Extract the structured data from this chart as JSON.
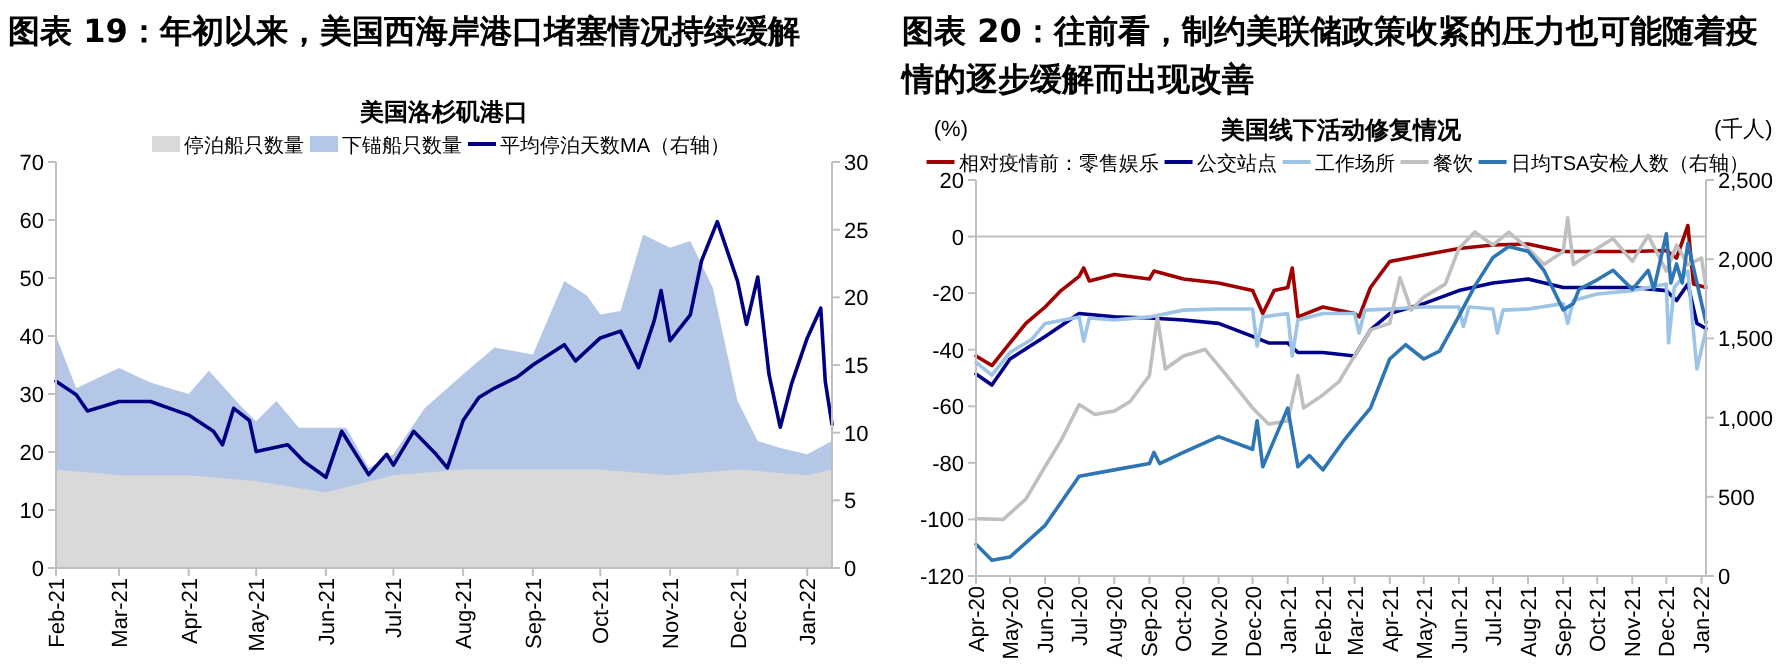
{
  "chart_data": [
    {
      "type": "area",
      "title": "图表 19：年初以来，美国西海岸港口堵塞情况持续缓解",
      "subtitle": "美国洛杉矶港口",
      "legend": "top",
      "grid": false,
      "xlim": [
        "2021-02-01",
        "2022-01-12"
      ],
      "xticks": [
        {
          "value": "2021-02-01",
          "label": "Feb-21"
        },
        {
          "value": "2021-03-01",
          "label": "Mar-21"
        },
        {
          "value": "2021-04-01",
          "label": "Apr-21"
        },
        {
          "value": "2021-05-01",
          "label": "May-21"
        },
        {
          "value": "2021-06-01",
          "label": "Jun-21"
        },
        {
          "value": "2021-07-01",
          "label": "Jul-21"
        },
        {
          "value": "2021-08-01",
          "label": "Aug-21"
        },
        {
          "value": "2021-09-01",
          "label": "Sep-21"
        },
        {
          "value": "2021-10-01",
          "label": "Oct-21"
        },
        {
          "value": "2021-11-01",
          "label": "Nov-21"
        },
        {
          "value": "2021-12-01",
          "label": "Dec-21"
        },
        {
          "value": "2022-01-01",
          "label": "Jan-22"
        }
      ],
      "ylim": [
        0,
        70
      ],
      "yticks": [
        0,
        10,
        20,
        30,
        40,
        50,
        60,
        70
      ],
      "y2lim": [
        0,
        30
      ],
      "y2ticks": [
        0,
        5,
        10,
        15,
        20,
        25,
        30
      ],
      "series": [
        {
          "name": "停泊船只数量",
          "color": "#d9d9d9",
          "x": [
            "2021-02-01",
            "2021-03-01",
            "2021-04-01",
            "2021-05-01",
            "2021-06-01",
            "2021-07-01",
            "2021-08-01",
            "2021-09-01",
            "2021-10-01",
            "2021-11-01",
            "2021-12-01",
            "2022-01-01",
            "2022-01-12"
          ],
          "values": [
            17,
            16,
            16,
            15,
            13,
            16,
            17,
            17,
            17,
            16,
            17,
            16,
            17
          ]
        },
        {
          "name": "下锚船只数量",
          "color": "#b4c7e7",
          "x": [
            "2021-02-01",
            "2021-02-10",
            "2021-03-01",
            "2021-03-15",
            "2021-04-01",
            "2021-04-10",
            "2021-04-25",
            "2021-05-01",
            "2021-05-10",
            "2021-05-20",
            "2021-06-10",
            "2021-06-20",
            "2021-07-01",
            "2021-07-15",
            "2021-08-01",
            "2021-08-15",
            "2021-09-01",
            "2021-09-15",
            "2021-09-25",
            "2021-10-01",
            "2021-10-10",
            "2021-10-20",
            "2021-11-01",
            "2021-11-10",
            "2021-11-20",
            "2021-12-01",
            "2021-12-10",
            "2021-12-20",
            "2022-01-01",
            "2022-01-12"
          ],
          "values": [
            40,
            31,
            34.5,
            32,
            30,
            34,
            27.6,
            25.3,
            28.8,
            24.2,
            24.2,
            17.3,
            19.6,
            27.6,
            33.4,
            38,
            36.8,
            49.5,
            47,
            43.7,
            44.3,
            57.5,
            55.2,
            56.4,
            48.3,
            28.8,
            21.9,
            20.7,
            19.6,
            21.9
          ]
        },
        {
          "name": "平均停泊天数MA（右轴）",
          "type": "line",
          "axis": "y2",
          "color": "#000080",
          "x": [
            "2021-02-01",
            "2021-02-10",
            "2021-02-15",
            "2021-03-01",
            "2021-03-15",
            "2021-04-01",
            "2021-04-12",
            "2021-04-16",
            "2021-04-21",
            "2021-04-28",
            "2021-05-01",
            "2021-05-15",
            "2021-05-22",
            "2021-06-01",
            "2021-06-08",
            "2021-06-20",
            "2021-06-28",
            "2021-07-01",
            "2021-07-10",
            "2021-07-20",
            "2021-07-25",
            "2021-08-01",
            "2021-08-08",
            "2021-08-15",
            "2021-08-25",
            "2021-09-01",
            "2021-09-15",
            "2021-09-20",
            "2021-10-01",
            "2021-10-10",
            "2021-10-18",
            "2021-10-25",
            "2021-10-28",
            "2021-11-01",
            "2021-11-10",
            "2021-11-15",
            "2021-11-22",
            "2021-12-01",
            "2021-12-05",
            "2021-12-10",
            "2021-12-15",
            "2021-12-20",
            "2021-12-25",
            "2022-01-01",
            "2022-01-07",
            "2022-01-09",
            "2022-01-12"
          ],
          "values": [
            13.8,
            12.8,
            11.6,
            12.3,
            12.3,
            11.3,
            10.1,
            9.1,
            11.8,
            10.9,
            8.6,
            9.1,
            7.9,
            6.7,
            10.1,
            6.9,
            8.4,
            7.6,
            10.1,
            8.4,
            7.4,
            10.9,
            12.6,
            13.3,
            14.1,
            15,
            16.5,
            15.3,
            17,
            17.5,
            14.8,
            18.3,
            20.5,
            16.8,
            18.7,
            22.7,
            25.6,
            21.2,
            18,
            21.5,
            14.3,
            10.4,
            13.6,
            17,
            19.2,
            13.8,
            10.6
          ]
        }
      ]
    },
    {
      "type": "line",
      "title": "图表 20：往前看，制约美联储政策收紧的压力也可能随着疫情的逐步缓解而出现改善",
      "subtitle": "美国线下活动修复情况",
      "ylabel": "(%)",
      "y2label": "(千人)",
      "legend": "top",
      "grid": false,
      "xlim": [
        "2020-04-01",
        "2022-01-05"
      ],
      "xticks": [
        {
          "value": "2020-04-01",
          "label": "Apr-20"
        },
        {
          "value": "2020-05-01",
          "label": "May-20"
        },
        {
          "value": "2020-06-01",
          "label": "Jun-20"
        },
        {
          "value": "2020-07-01",
          "label": "Jul-20"
        },
        {
          "value": "2020-08-01",
          "label": "Aug-20"
        },
        {
          "value": "2020-09-01",
          "label": "Sep-20"
        },
        {
          "value": "2020-10-01",
          "label": "Oct-20"
        },
        {
          "value": "2020-11-01",
          "label": "Nov-20"
        },
        {
          "value": "2020-12-01",
          "label": "Dec-20"
        },
        {
          "value": "2021-01-01",
          "label": "Jan-21"
        },
        {
          "value": "2021-02-01",
          "label": "Feb-21"
        },
        {
          "value": "2021-03-01",
          "label": "Mar-21"
        },
        {
          "value": "2021-04-01",
          "label": "Apr-21"
        },
        {
          "value": "2021-05-01",
          "label": "May-21"
        },
        {
          "value": "2021-06-01",
          "label": "Jun-21"
        },
        {
          "value": "2021-07-01",
          "label": "Jul-21"
        },
        {
          "value": "2021-08-01",
          "label": "Aug-21"
        },
        {
          "value": "2021-09-01",
          "label": "Sep-21"
        },
        {
          "value": "2021-10-01",
          "label": "Oct-21"
        },
        {
          "value": "2021-11-01",
          "label": "Nov-21"
        },
        {
          "value": "2021-12-01",
          "label": "Dec-21"
        },
        {
          "value": "2022-01-01",
          "label": "Jan-22"
        }
      ],
      "ylim": [
        -120,
        20
      ],
      "yticks": [
        -120,
        -100,
        -80,
        -60,
        -40,
        -20,
        0,
        20
      ],
      "y2lim": [
        0,
        2500
      ],
      "y2ticks": [
        0,
        500,
        {
          "value": 1000,
          "label": "1,000"
        },
        {
          "value": 1500,
          "label": "1,500"
        },
        {
          "value": 2000,
          "label": "2,000"
        },
        {
          "value": 2500,
          "label": "2,500"
        }
      ],
      "ref_lines": [
        {
          "axis": "y",
          "value": 0,
          "label": null,
          "color": "#bfbfbf"
        }
      ],
      "series": [
        {
          "name": "相对疫情前：零售娱乐",
          "color": "#a00000",
          "x": [
            "2020-04-01",
            "2020-04-15",
            "2020-05-01",
            "2020-05-15",
            "2020-06-01",
            "2020-06-15",
            "2020-07-01",
            "2020-07-05",
            "2020-07-10",
            "2020-08-01",
            "2020-09-01",
            "2020-09-05",
            "2020-10-01",
            "2020-11-01",
            "2020-12-01",
            "2020-12-10",
            "2020-12-20",
            "2021-01-01",
            "2021-01-05",
            "2021-01-10",
            "2021-02-01",
            "2021-03-01",
            "2021-03-05",
            "2021-03-15",
            "2021-04-01",
            "2021-05-01",
            "2021-06-01",
            "2021-07-01",
            "2021-08-01",
            "2021-09-01",
            "2021-10-01",
            "2021-11-01",
            "2021-12-01",
            "2021-12-10",
            "2021-12-20",
            "2021-12-25",
            "2022-01-05"
          ],
          "values": [
            -42.2,
            -45.6,
            -37.6,
            -30.7,
            -24.9,
            -19.1,
            -14.1,
            -11.1,
            -15.7,
            -13.4,
            -15,
            -12.2,
            -15,
            -16.4,
            -19.1,
            -27.2,
            -19.1,
            -18,
            -11.1,
            -28.4,
            -24.9,
            -27.2,
            -28.4,
            -18,
            -8.8,
            -6.5,
            -4.2,
            -3,
            -2.6,
            -5.3,
            -5.3,
            -5.3,
            -4.9,
            -7.6,
            3.9,
            -16.8,
            -18
          ]
        },
        {
          "name": "公交站点",
          "color": "#00008b",
          "x": [
            "2020-04-01",
            "2020-04-15",
            "2020-05-01",
            "2020-06-01",
            "2020-07-01",
            "2020-08-01",
            "2020-09-01",
            "2020-10-01",
            "2020-11-01",
            "2020-12-01",
            "2020-12-15",
            "2021-01-01",
            "2021-01-10",
            "2021-02-01",
            "2021-03-01",
            "2021-03-15",
            "2021-04-01",
            "2021-05-01",
            "2021-06-01",
            "2021-07-01",
            "2021-08-01",
            "2021-09-01",
            "2021-10-01",
            "2021-11-01",
            "2021-12-01",
            "2021-12-10",
            "2021-12-20",
            "2021-12-28",
            "2022-01-05"
          ],
          "values": [
            -48.6,
            -52.5,
            -43.3,
            -35.3,
            -27.2,
            -28.4,
            -28.8,
            -29.5,
            -30.7,
            -35.3,
            -37.6,
            -37.6,
            -41,
            -41,
            -42.2,
            -33,
            -27.2,
            -23.7,
            -19.1,
            -16.4,
            -15,
            -18,
            -18,
            -18,
            -19.1,
            -22.6,
            -16.8,
            -30.7,
            -32.5
          ]
        },
        {
          "name": "工作场所",
          "color": "#9dc3e6",
          "x": [
            "2020-04-01",
            "2020-04-15",
            "2020-05-01",
            "2020-05-20",
            "2020-06-01",
            "2020-07-01",
            "2020-07-05",
            "2020-07-10",
            "2020-08-01",
            "2020-09-01",
            "2020-10-01",
            "2020-11-01",
            "2020-12-01",
            "2020-12-05",
            "2020-12-10",
            "2021-01-01",
            "2021-01-05",
            "2021-01-10",
            "2021-02-01",
            "2021-03-01",
            "2021-03-05",
            "2021-03-10",
            "2021-04-01",
            "2021-05-01",
            "2021-06-01",
            "2021-06-05",
            "2021-06-10",
            "2021-07-01",
            "2021-07-05",
            "2021-07-10",
            "2021-08-01",
            "2021-09-01",
            "2021-09-05",
            "2021-09-10",
            "2021-10-01",
            "2021-11-01",
            "2021-12-01",
            "2021-12-03",
            "2021-12-08",
            "2021-12-20",
            "2021-12-28",
            "2022-01-05"
          ],
          "values": [
            -44.5,
            -49,
            -41,
            -36.4,
            -30.7,
            -28.4,
            -37,
            -28.8,
            -29.5,
            -28.4,
            -26,
            -25.6,
            -25.6,
            -38.7,
            -28.4,
            -27.2,
            -42.2,
            -29.5,
            -27.2,
            -27.2,
            -34.1,
            -26,
            -25.6,
            -24.9,
            -24.9,
            -31.8,
            -24.9,
            -25.6,
            -34.1,
            -26,
            -25.6,
            -23.7,
            -30.7,
            -22.6,
            -20.3,
            -19.1,
            -16.8,
            -37.6,
            -18,
            -12.2,
            -46.8,
            -33
          ]
        },
        {
          "name": "餐饮",
          "color": "#bfbfbf",
          "x": [
            "2020-04-01",
            "2020-04-25",
            "2020-05-15",
            "2020-06-01",
            "2020-06-15",
            "2020-07-01",
            "2020-07-15",
            "2020-08-01",
            "2020-08-15",
            "2020-09-01",
            "2020-09-08",
            "2020-09-15",
            "2020-10-01",
            "2020-10-20",
            "2020-11-01",
            "2020-11-15",
            "2020-12-01",
            "2020-12-15",
            "2021-01-01",
            "2021-01-10",
            "2021-01-15",
            "2021-02-01",
            "2021-02-15",
            "2021-03-01",
            "2021-03-15",
            "2021-04-01",
            "2021-04-10",
            "2021-04-20",
            "2021-05-01",
            "2021-05-20",
            "2021-06-01",
            "2021-06-15",
            "2021-07-01",
            "2021-07-15",
            "2021-08-01",
            "2021-08-15",
            "2021-09-01",
            "2021-09-05",
            "2021-09-10",
            "2021-10-01",
            "2021-10-15",
            "2021-11-01",
            "2021-11-15",
            "2021-12-01",
            "2021-12-10",
            "2021-12-20",
            "2022-01-01",
            "2022-01-05"
          ],
          "values": [
            -99.7,
            -100,
            -92.8,
            -81.3,
            -72.1,
            -59.4,
            -62.9,
            -61.7,
            -58.3,
            -49.1,
            -28.4,
            -46.8,
            -42.2,
            -39.9,
            -45.6,
            -52.5,
            -60.6,
            -66.3,
            -65.2,
            -49.1,
            -60.6,
            -56,
            -51.4,
            -42.2,
            -33,
            -30.7,
            -14.5,
            -26,
            -21.4,
            -16.8,
            -4.2,
            1.6,
            -3,
            1.6,
            -4.2,
            -9.9,
            -5.3,
            6.6,
            -9.9,
            -4.2,
            -0.7,
            -8.8,
            0.4,
            -12.2,
            -3,
            -9.9,
            -7.6,
            -18
          ]
        },
        {
          "name": "日均TSA安检人数（右轴）",
          "color": "#2e75b6",
          "axis": "y2",
          "x": [
            "2020-04-01",
            "2020-04-15",
            "2020-05-01",
            "2020-06-01",
            "2020-07-01",
            "2020-08-01",
            "2020-09-01",
            "2020-09-05",
            "2020-09-10",
            "2020-10-01",
            "2020-11-01",
            "2020-12-01",
            "2020-12-05",
            "2020-12-10",
            "2021-01-01",
            "2021-01-10",
            "2021-01-20",
            "2021-02-01",
            "2021-02-20",
            "2021-03-01",
            "2021-03-15",
            "2021-04-01",
            "2021-04-15",
            "2021-05-01",
            "2021-05-15",
            "2021-06-01",
            "2021-06-15",
            "2021-07-01",
            "2021-07-15",
            "2021-08-01",
            "2021-08-15",
            "2021-09-01",
            "2021-09-10",
            "2021-09-15",
            "2021-10-01",
            "2021-10-15",
            "2021-11-01",
            "2021-11-15",
            "2021-11-20",
            "2021-12-01",
            "2021-12-05",
            "2021-12-10",
            "2021-12-15",
            "2021-12-20",
            "2021-12-28",
            "2022-01-05"
          ],
          "values": [
            200,
            100,
            120,
            320,
            630,
            670,
            710,
            780,
            710,
            780,
            880,
            800,
            980,
            690,
            1060,
            690,
            760,
            670,
            860,
            940,
            1060,
            1370,
            1460,
            1370,
            1420,
            1640,
            1830,
            2010,
            2080,
            2050,
            1930,
            1680,
            1720,
            1810,
            1870,
            1930,
            1810,
            1930,
            1810,
            2160,
            1850,
            1970,
            1850,
            2100,
            1850,
            1600
          ]
        }
      ]
    }
  ]
}
